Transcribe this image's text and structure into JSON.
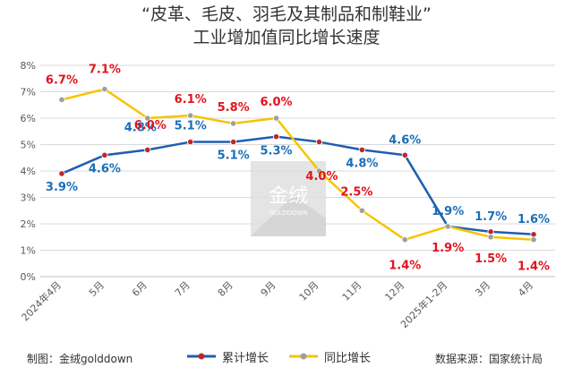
{
  "chart_data": {
    "type": "line",
    "title": "“皮革、毛皮、羽毛及其制品和制鞋业”",
    "subtitle": "工业增加值同比增长速度",
    "categories": [
      "2024年4月",
      "5月",
      "6月",
      "7月",
      "8月",
      "9月",
      "10月",
      "11月",
      "12月",
      "2025年1-2月",
      "3月",
      "4月"
    ],
    "ylim": [
      0,
      8
    ],
    "y_ticks": [
      "0%",
      "1%",
      "2%",
      "3%",
      "4%",
      "5%",
      "6%",
      "7%",
      "8%"
    ],
    "grid": true,
    "legend_position": "bottom",
    "series": [
      {
        "name": "累计增长",
        "color": "#1f5fb0",
        "marker_color": "#c0262b",
        "values": [
          3.9,
          4.6,
          4.8,
          5.1,
          5.1,
          5.3,
          5.1,
          4.8,
          4.6,
          1.9,
          1.7,
          1.6
        ],
        "labels": [
          "3.9%",
          "4.6%",
          "4.8%",
          "5.1%",
          "5.1%",
          "5.3%",
          "",
          "4.8%",
          "4.6%",
          "1.9%",
          "1.7%",
          "1.6%"
        ],
        "label_color": "#1a6fb8"
      },
      {
        "name": "同比增长",
        "color": "#f5c400",
        "marker_color": "#9e9e9e",
        "values": [
          6.7,
          7.1,
          6.0,
          6.1,
          5.8,
          6.0,
          4.0,
          2.5,
          1.4,
          1.9,
          1.5,
          1.4
        ],
        "labels": [
          "6.7%",
          "7.1%",
          "6.0%",
          "6.1%",
          "5.8%",
          "6.0%",
          "4.0%",
          "2.5%",
          "1.4%",
          "1.9%",
          "1.5%",
          "1.4%"
        ],
        "label_color": "#e0141e"
      }
    ]
  },
  "watermark": {
    "text": "金绒",
    "subtext": "GOLDDOWN"
  },
  "footer": {
    "credit": "制图：金绒golddown",
    "source": "数据来源：国家统计局"
  }
}
